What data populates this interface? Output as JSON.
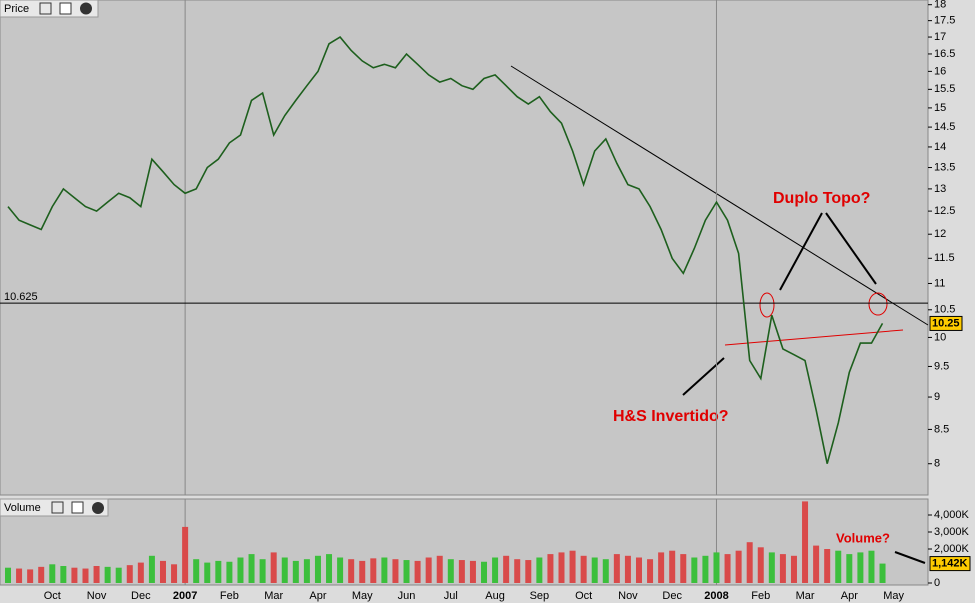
{
  "chart_data": [
    {
      "type": "line",
      "title": "Price",
      "log_scale": true,
      "color": "#1d5f1d",
      "values": [
        12.6,
        12.3,
        12.2,
        12.1,
        12.6,
        13.0,
        12.8,
        12.6,
        12.5,
        12.7,
        12.9,
        12.8,
        12.6,
        13.7,
        13.4,
        13.1,
        12.9,
        13.0,
        13.5,
        13.7,
        14.1,
        14.3,
        15.2,
        15.4,
        14.3,
        14.8,
        15.2,
        15.6,
        16.0,
        16.8,
        17.0,
        16.6,
        16.3,
        16.1,
        16.2,
        16.1,
        16.5,
        16.2,
        15.9,
        15.7,
        15.8,
        15.6,
        15.5,
        15.8,
        15.9,
        15.6,
        15.3,
        15.1,
        15.3,
        14.9,
        14.6,
        13.9,
        13.1,
        13.9,
        14.2,
        13.6,
        13.1,
        13.0,
        12.6,
        12.1,
        11.5,
        11.2,
        11.7,
        12.3,
        12.7,
        12.3,
        11.6,
        9.6,
        9.3,
        10.4,
        9.8,
        9.7,
        9.6,
        8.8,
        8.0,
        8.6,
        9.4,
        9.9,
        9.9,
        10.25,
        null
      ],
      "ylim": [
        7.57,
        18.15
      ],
      "yticks": [
        8,
        8.5,
        9,
        9.5,
        10,
        10.5,
        11,
        11.5,
        12,
        12.5,
        13,
        13.5,
        14,
        14.5,
        15,
        15.5,
        16,
        16.5,
        17,
        17.5,
        18
      ],
      "hline": 10.625,
      "annotations": [
        "Duplo Topo?",
        "H&S Invertido?"
      ]
    },
    {
      "type": "bar",
      "title": "Volume",
      "up_color": "#3cbf3c",
      "down_color": "#d94a4a",
      "categories": [
        null,
        null,
        null,
        null,
        "Oct",
        null,
        null,
        null,
        "Nov",
        null,
        null,
        null,
        "Dec",
        null,
        null,
        null,
        "2007",
        null,
        null,
        null,
        "Feb",
        null,
        null,
        null,
        "Mar",
        null,
        null,
        null,
        "Apr",
        null,
        null,
        null,
        "May",
        null,
        null,
        null,
        "Jun",
        null,
        null,
        null,
        "Jul",
        null,
        null,
        null,
        "Aug",
        null,
        null,
        null,
        "Sep",
        null,
        null,
        null,
        "Oct",
        null,
        null,
        null,
        "Nov",
        null,
        null,
        null,
        "Dec",
        null,
        null,
        null,
        "2008",
        null,
        null,
        null,
        "Feb",
        null,
        null,
        null,
        "Mar",
        null,
        null,
        null,
        "Apr",
        null,
        null,
        null,
        "May"
      ],
      "values": [
        900000,
        850000,
        800000,
        950000,
        1100000,
        1000000,
        900000,
        850000,
        1000000,
        950000,
        900000,
        1050000,
        1200000,
        1600000,
        1300000,
        1100000,
        3300000,
        1400000,
        1200000,
        1300000,
        1250000,
        1500000,
        1700000,
        1400000,
        1800000,
        1500000,
        1300000,
        1400000,
        1600000,
        1700000,
        1500000,
        1400000,
        1300000,
        1450000,
        1500000,
        1400000,
        1350000,
        1300000,
        1500000,
        1600000,
        1400000,
        1350000,
        1300000,
        1250000,
        1500000,
        1600000,
        1400000,
        1350000,
        1500000,
        1700000,
        1800000,
        1900000,
        1600000,
        1500000,
        1400000,
        1700000,
        1600000,
        1500000,
        1400000,
        1800000,
        1900000,
        1700000,
        1500000,
        1600000,
        1800000,
        1700000,
        1900000,
        2400000,
        2100000,
        1800000,
        1700000,
        1600000,
        4800000,
        2200000,
        2000000,
        1900000,
        1700000,
        1800000,
        1900000,
        1142000,
        null
      ],
      "last_value_label": "1,142K",
      "ylim": [
        0,
        5000000
      ],
      "yticks": [
        0,
        {
          "value": 2000000,
          "label": "2,000K"
        },
        {
          "value": 3000000,
          "label": "3,000K"
        },
        {
          "value": 4000000,
          "label": "4,000K"
        }
      ],
      "annotation": "Volume?"
    }
  ]
}
